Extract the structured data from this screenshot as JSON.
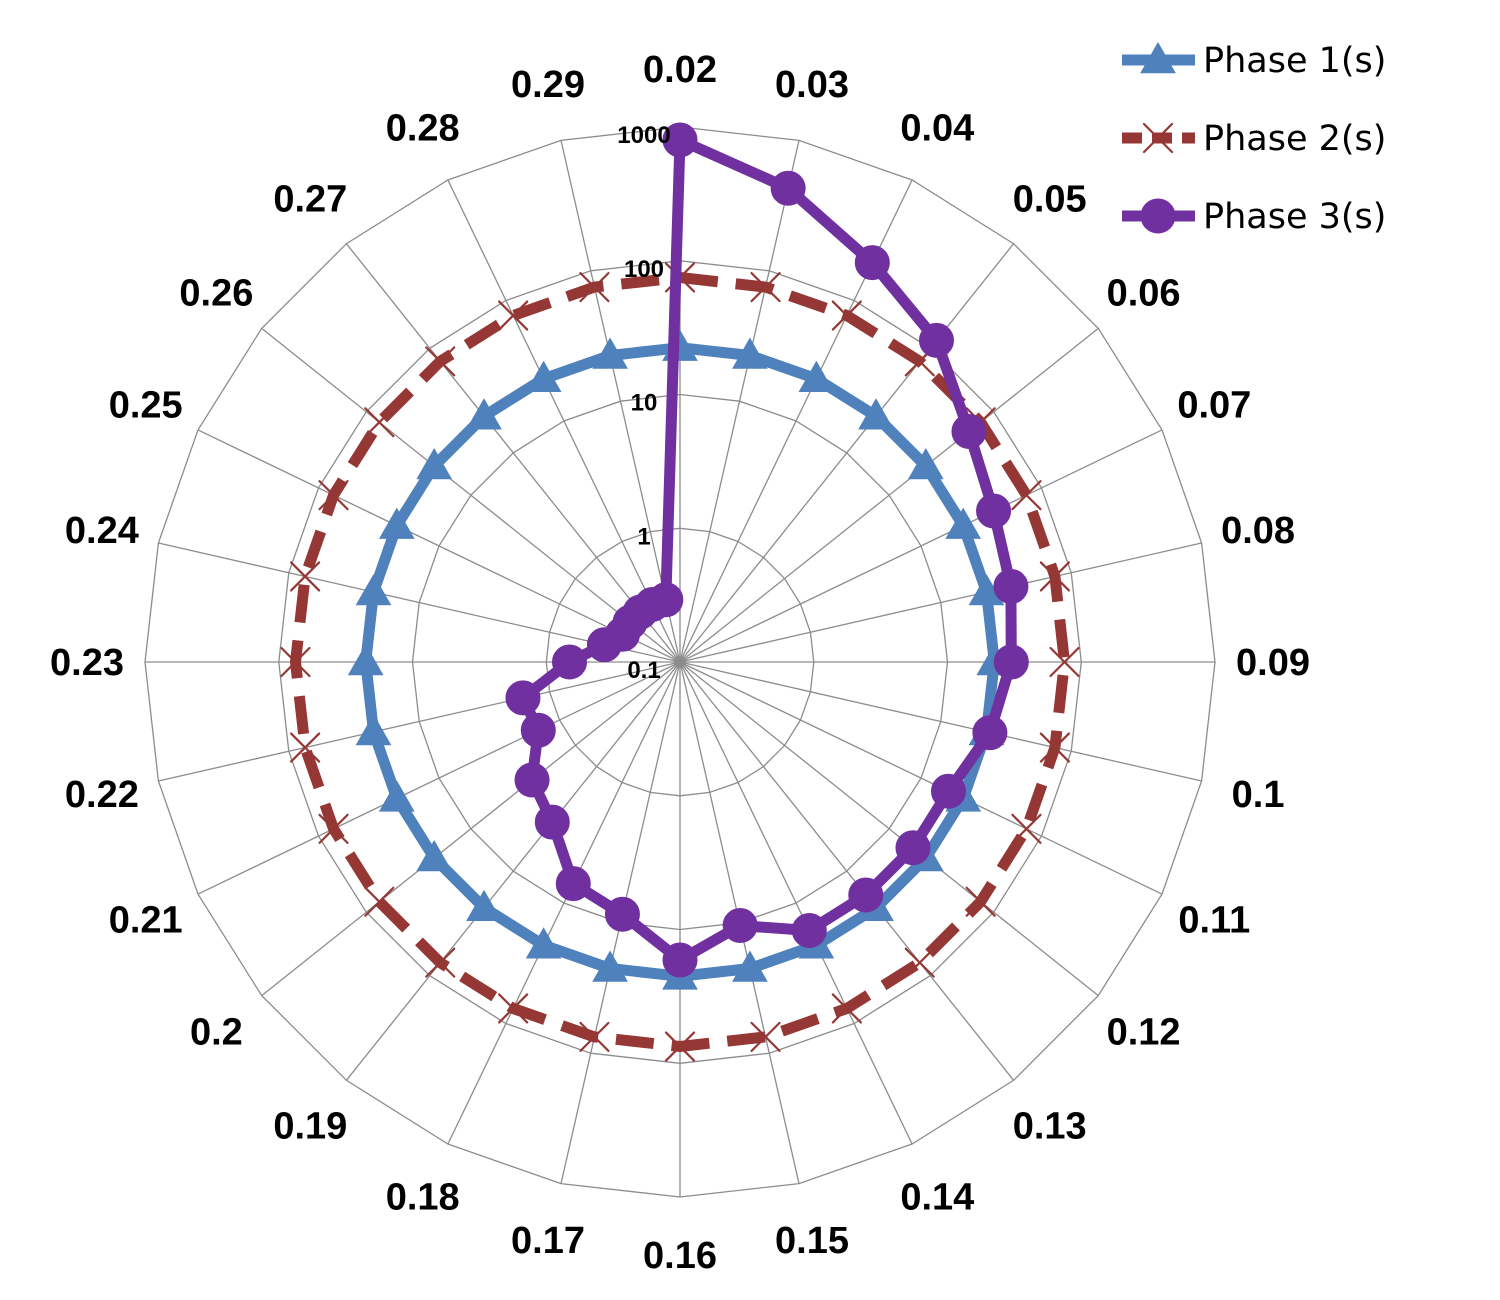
{
  "chart_data": {
    "type": "radar",
    "scale": "log",
    "rlim": [
      0.1,
      1000
    ],
    "tick_labels": [
      "0.1",
      "1",
      "10",
      "100",
      "1000"
    ],
    "tick_values": [
      0.1,
      1,
      10,
      100,
      1000
    ],
    "categories": [
      "0.02",
      "0.03",
      "0.04",
      "0.05",
      "0.06",
      "0.07",
      "0.08",
      "0.09",
      "0.1",
      "0.11",
      "0.12",
      "0.13",
      "0.14",
      "0.15",
      "0.16",
      "0.17",
      "0.18",
      "0.19",
      "0.2",
      "0.21",
      "0.22",
      "0.23",
      "0.24",
      "0.25",
      "0.26",
      "0.27",
      "0.28",
      "0.29"
    ],
    "grid": true,
    "legend_position": "top-right",
    "series": [
      {
        "name": "Phase 1(s)",
        "color": "#4F81BD",
        "marker": "triangle",
        "line_style": "solid",
        "values": [
          22.4,
          22.4,
          22.4,
          22.4,
          22.4,
          22.4,
          22.4,
          22.4,
          22.4,
          22.4,
          22.4,
          22.4,
          22.4,
          22.4,
          22.4,
          22.4,
          22.4,
          22.4,
          22.4,
          22.4,
          22.4,
          22.4,
          22.4,
          22.4,
          22.4,
          22.4,
          22.4,
          22.4
        ]
      },
      {
        "name": "Phase 2(s)",
        "color": "#953735",
        "marker": "x",
        "line_style": "dashed",
        "values": [
          75,
          75,
          75,
          75,
          75,
          75,
          75,
          75,
          75,
          75,
          75,
          75,
          75,
          75,
          75,
          75,
          75,
          75,
          75,
          75,
          75,
          75,
          75,
          75,
          75,
          75,
          75,
          75
        ]
      },
      {
        "name": "Phase 3(s)",
        "color": "#7030A0",
        "marker": "circle",
        "line_style": "solid",
        "values": [
          800,
          430,
          206,
          119,
          58,
          40,
          34.5,
          30,
          23.8,
          16.9,
          16.9,
          16.9,
          16.9,
          10.5,
          16.9,
          8.6,
          6.9,
          3.4,
          2.6,
          1.5,
          1.6,
          0.67,
          0.38,
          0.3,
          0.3,
          0.3,
          0.3,
          0.3
        ]
      }
    ]
  }
}
